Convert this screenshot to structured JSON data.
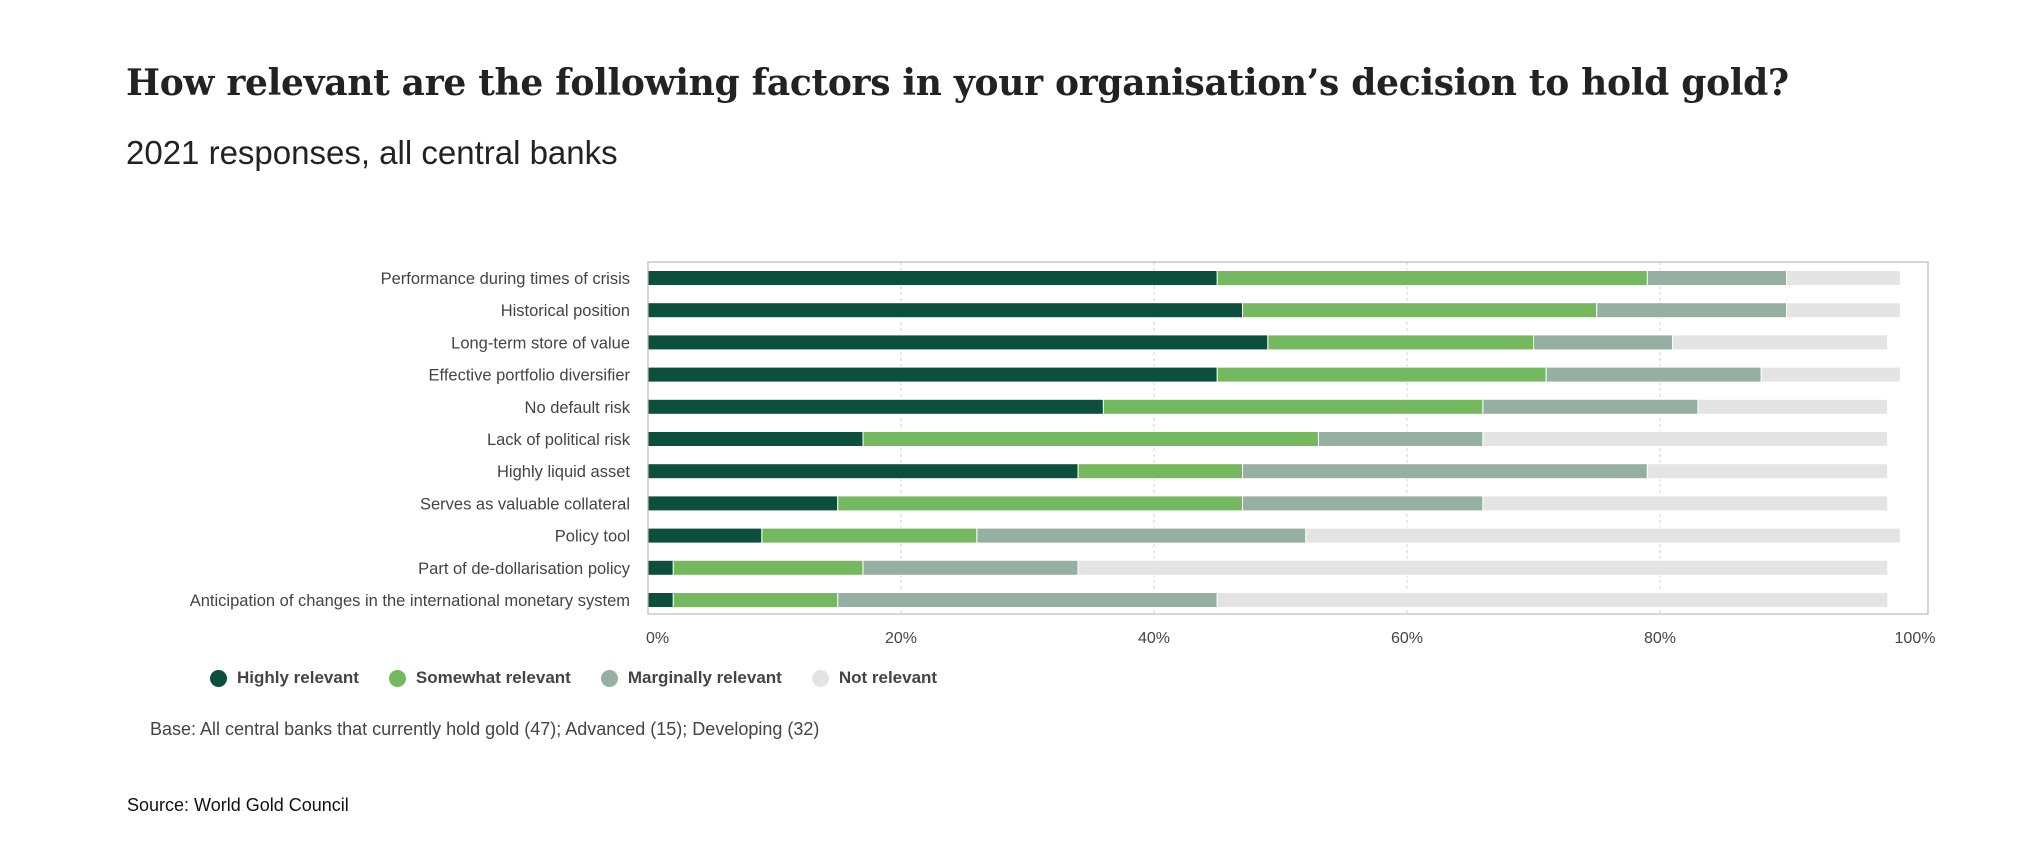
{
  "chart_data": {
    "type": "bar",
    "orientation": "horizontal",
    "stacked": true,
    "title": "How relevant are the following factors in your organisation’s decision to hold gold?",
    "subtitle": "2021 responses, all central banks",
    "categories": [
      "Performance during times of crisis",
      "Historical position",
      "Long-term store of value",
      "Effective portfolio diversifier",
      "No default risk",
      "Lack of political risk",
      "Highly liquid asset",
      "Serves as valuable collateral",
      "Policy tool",
      "Part of de-dollarisation policy",
      "Anticipation of changes in the international monetary system"
    ],
    "series": [
      {
        "name": "Highly relevant",
        "color": "#0b4f3c",
        "values": [
          45,
          47,
          49,
          45,
          36,
          17,
          34,
          15,
          9,
          2,
          2
        ]
      },
      {
        "name": "Somewhat relevant",
        "color": "#74b95d",
        "values": [
          34,
          28,
          21,
          26,
          30,
          36,
          13,
          32,
          17,
          15,
          13
        ]
      },
      {
        "name": "Marginally relevant",
        "color": "#94b0a2",
        "values": [
          11,
          15,
          11,
          17,
          17,
          13,
          32,
          19,
          26,
          17,
          30
        ]
      },
      {
        "name": "Not relevant",
        "color": "#e4e4e4",
        "values": [
          9,
          9,
          17,
          11,
          15,
          32,
          19,
          32,
          47,
          64,
          53
        ]
      }
    ],
    "x_ticks": [
      "0%",
      "20%",
      "40%",
      "60%",
      "80%",
      "100%"
    ],
    "xlim": [
      0,
      100
    ],
    "grid": true,
    "legend_position": "bottom-left"
  },
  "base_note": "Base: All central banks that currently hold gold (47); Advanced (15); Developing (32)",
  "source": "Source: World Gold Council"
}
